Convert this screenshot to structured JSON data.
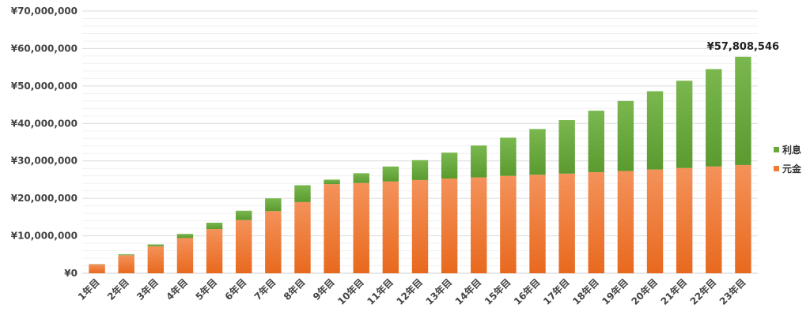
{
  "chart_data": {
    "type": "bar",
    "stacked": true,
    "categories": [
      "1年目",
      "2年目",
      "3年目",
      "4年目",
      "5年目",
      "6年目",
      "7年目",
      "8年目",
      "9年目",
      "10年目",
      "11年目",
      "12年目",
      "13年目",
      "14年目",
      "15年目",
      "16年目",
      "17年目",
      "18年目",
      "19年目",
      "20年目",
      "21年目",
      "22年目",
      "23年目"
    ],
    "series": [
      {
        "name": "元金",
        "color": "#f07c33",
        "values": [
          2400000,
          4800000,
          7200000,
          9400000,
          11800000,
          14200000,
          16600000,
          19000000,
          23800000,
          24100000,
          24500000,
          24900000,
          25300000,
          25600000,
          26000000,
          26300000,
          26600000,
          27000000,
          27300000,
          27700000,
          28100000,
          28500000,
          28900000
        ]
      },
      {
        "name": "利息",
        "color": "#6aaa3a",
        "values": [
          50000,
          250000,
          500000,
          1100000,
          1700000,
          2500000,
          3400000,
          4500000,
          1200000,
          2600000,
          4000000,
          5300000,
          6900000,
          8500000,
          10200000,
          12200000,
          14300000,
          16400000,
          18700000,
          20900000,
          23300000,
          26000000,
          28908546
        ]
      }
    ],
    "ylim": [
      0,
      70000000
    ],
    "y_ticks": [
      "¥0",
      "¥10,000,000",
      "¥20,000,000",
      "¥30,000,000",
      "¥40,000,000",
      "¥50,000,000",
      "¥60,000,000",
      "¥70,000,000"
    ],
    "annotation": "¥57,808,546",
    "legend_position": "right",
    "grid": true
  }
}
